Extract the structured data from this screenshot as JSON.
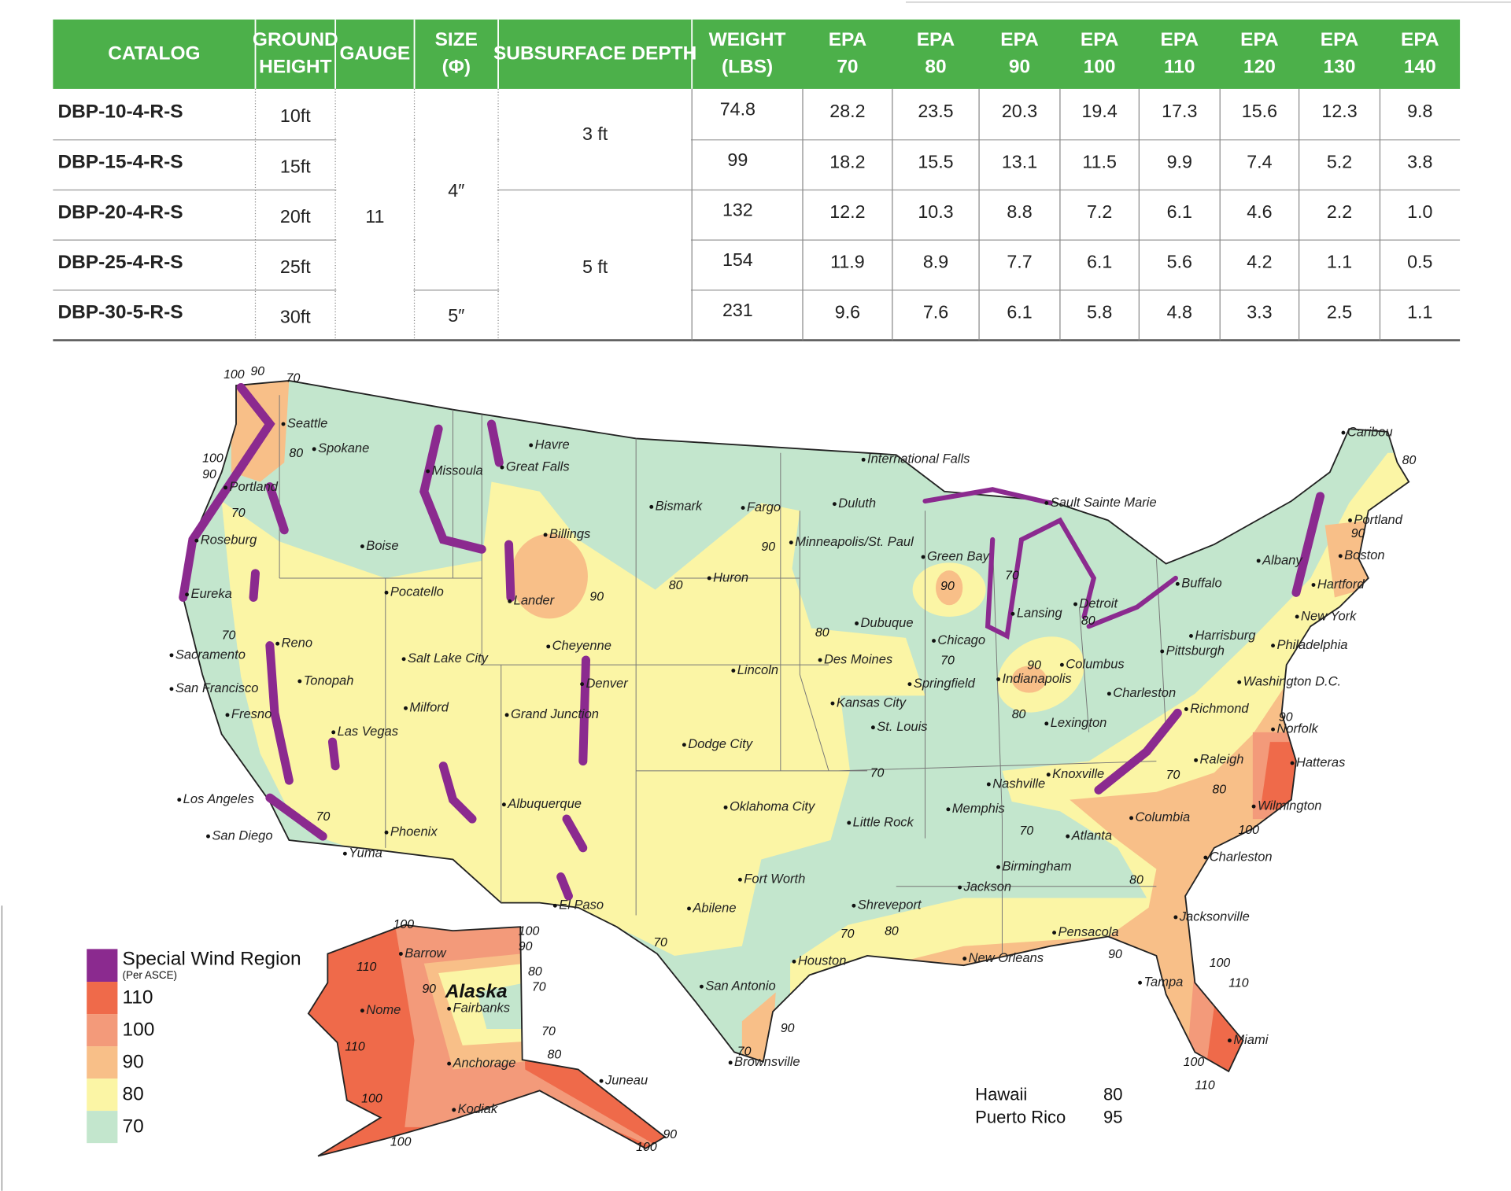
{
  "table": {
    "headers": [
      [
        "CATALOG"
      ],
      [
        "GROUND",
        "HEIGHT"
      ],
      [
        "GAUGE"
      ],
      [
        "SIZE",
        "(Φ)"
      ],
      [
        "SUBSURFACE DEPTH"
      ],
      [
        "WEIGHT",
        "(LBS)"
      ],
      [
        "EPA",
        "70"
      ],
      [
        "EPA",
        "80"
      ],
      [
        "EPA",
        "90"
      ],
      [
        "EPA",
        "100"
      ],
      [
        "EPA",
        "110"
      ],
      [
        "EPA",
        "120"
      ],
      [
        "EPA",
        "130"
      ],
      [
        "EPA",
        "140"
      ]
    ],
    "rows": [
      {
        "catalog": "DBP-10-4-R-S",
        "height": "10ft",
        "weight": "74.8",
        "epa": [
          "28.2",
          "23.5",
          "20.3",
          "19.4",
          "17.3",
          "15.6",
          "12.3",
          "9.8"
        ]
      },
      {
        "catalog": "DBP-15-4-R-S",
        "height": "15ft",
        "weight": "99",
        "epa": [
          "18.2",
          "15.5",
          "13.1",
          "11.5",
          "9.9",
          "7.4",
          "5.2",
          "3.8"
        ]
      },
      {
        "catalog": "DBP-20-4-R-S",
        "height": "20ft",
        "weight": "132",
        "epa": [
          "12.2",
          "10.3",
          "8.8",
          "7.2",
          "6.1",
          "4.6",
          "2.2",
          "1.0"
        ]
      },
      {
        "catalog": "DBP-25-4-R-S",
        "height": "25ft",
        "weight": "154",
        "epa": [
          "11.9",
          "8.9",
          "7.7",
          "6.1",
          "5.6",
          "4.2",
          "1.1",
          "0.5"
        ]
      },
      {
        "catalog": "DBP-30-5-R-S",
        "height": "30ft",
        "weight": "231",
        "epa": [
          "9.6",
          "7.6",
          "6.1",
          "5.8",
          "4.8",
          "3.3",
          "2.5",
          "1.1"
        ]
      }
    ],
    "gauge": "11",
    "size": [
      "4″",
      "5″"
    ],
    "depth": [
      "3 ft",
      "5 ft"
    ]
  },
  "map": {
    "alaska": "Alaska",
    "cities": [
      "Seattle",
      "Spokane",
      "Portland",
      "Roseburg",
      "Eureka",
      "Sacramento",
      "San Francisco",
      "Fresno",
      "Los Angeles",
      "San Diego",
      "Yuma",
      "Phoenix",
      "Las Vegas",
      "Reno",
      "Tonopah",
      "Boise",
      "Pocatello",
      "Missoula",
      "Great Falls",
      "Havre",
      "Billings",
      "Lander",
      "Salt Lake City",
      "Milford",
      "Cheyenne",
      "Denver",
      "Grand Junction",
      "Albuquerque",
      "El Paso",
      "Bismark",
      "Fargo",
      "Huron",
      "Minneapolis/St. Paul",
      "Duluth",
      "International Falls",
      "Lincoln",
      "Des Moines",
      "Kansas City",
      "St. Louis",
      "Dodge City",
      "Oklahoma City",
      "Fort Worth",
      "Abilene",
      "San Antonio",
      "Houston",
      "Brownsville",
      "Little Rock",
      "Shreveport",
      "Jackson",
      "New Orleans",
      "Pensacola",
      "Memphis",
      "Birmingham",
      "Atlanta",
      "Nashville",
      "Knoxville",
      "Lexington",
      "Charleston",
      "Columbus",
      "Indianapolis",
      "Springfield",
      "Chicago",
      "Green Bay",
      "Dubuque",
      "Lansing",
      "Detroit",
      "Sault Sainte Marie",
      "Buffalo",
      "Pittsburgh",
      "Harrisburg",
      "Albany",
      "Caribou",
      "Portland",
      "Boston",
      "Hartford",
      "New York",
      "Philadelphia",
      "Washington D.C.",
      "Richmond",
      "Norfolk",
      "Raleigh",
      "Hatteras",
      "Wilmington",
      "Columbia",
      "Charleston",
      "Jacksonville",
      "Tampa",
      "Miami",
      "Barrow",
      "Nome",
      "Fairbanks",
      "Anchorage",
      "Juneau",
      "Kodiak"
    ],
    "contours": [
      "100",
      "90",
      "70",
      "80",
      "100",
      "90",
      "70",
      "70",
      "90",
      "90",
      "80",
      "80",
      "70",
      "90",
      "70",
      "90",
      "80",
      "70",
      "70",
      "80",
      "70",
      "80",
      "100",
      "90",
      "80",
      "70",
      "80",
      "90",
      "100",
      "110",
      "110",
      "100",
      "90",
      "80",
      "70",
      "70",
      "90",
      "70",
      "100",
      "100",
      "90",
      "80",
      "70",
      "90",
      "70",
      "80",
      "110",
      "110",
      "100",
      "100",
      "90",
      "100"
    ],
    "legend": {
      "title": "Special Wind Region",
      "subtitle": "(Per ASCE)",
      "items": [
        "110",
        "100",
        "90",
        "80",
        "70"
      ]
    },
    "notes": [
      {
        "place": "Hawaii",
        "speed": "80"
      },
      {
        "place": "Puerto Rico",
        "speed": "95"
      }
    ]
  }
}
